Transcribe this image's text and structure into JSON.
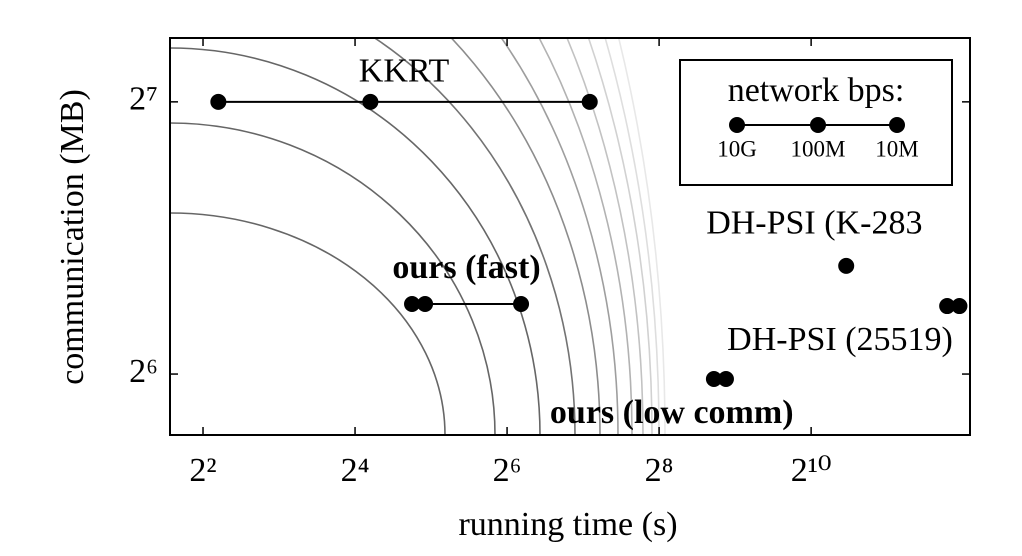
{
  "chart_data": {
    "type": "scatter",
    "x_label": "running time (s)",
    "y_label": "communication (MB)",
    "log_x": true,
    "log_y": true,
    "xlim": [
      2.96,
      4360
    ],
    "ylim": [
      54.8,
      150.6
    ],
    "xticks": [
      {
        "value": 4,
        "label": "2²"
      },
      {
        "value": 16,
        "label": "2⁴"
      },
      {
        "value": 64,
        "label": "2⁶"
      },
      {
        "value": 256,
        "label": "2⁸"
      },
      {
        "value": 1024,
        "label": "2¹⁰"
      }
    ],
    "yticks": [
      {
        "value": 64,
        "label": "2⁶"
      },
      {
        "value": 128,
        "label": "2⁷"
      }
    ],
    "color": "#000000",
    "legend": {
      "title": "network bps:",
      "labels": [
        "10G",
        "100M",
        "10M"
      ],
      "position": "upper right"
    },
    "series": [
      {
        "name": "KKRT",
        "connected": true,
        "bold": false,
        "x": [
          4.6,
          18.4,
          136
        ],
        "values": [
          128,
          128,
          128
        ]
      },
      {
        "name": "ours (fast)",
        "connected": true,
        "bold": true,
        "x": [
          26.9,
          30.3,
          72.7
        ],
        "values": [
          76.5,
          76.5,
          76.5
        ]
      },
      {
        "name": "DH-PSI (K-283",
        "connected": false,
        "bold": false,
        "x": [
          1410
        ],
        "values": [
          84.3
        ]
      },
      {
        "name": "DH-PSI (25519)",
        "connected": false,
        "bold": false,
        "x": [
          3540,
          3960
        ],
        "values": [
          76.1,
          76.1
        ]
      },
      {
        "name": "ours (low comm)",
        "connected": false,
        "bold": true,
        "x": [
          422,
          471
        ],
        "values": [
          63.2,
          63.2
        ]
      }
    ]
  }
}
